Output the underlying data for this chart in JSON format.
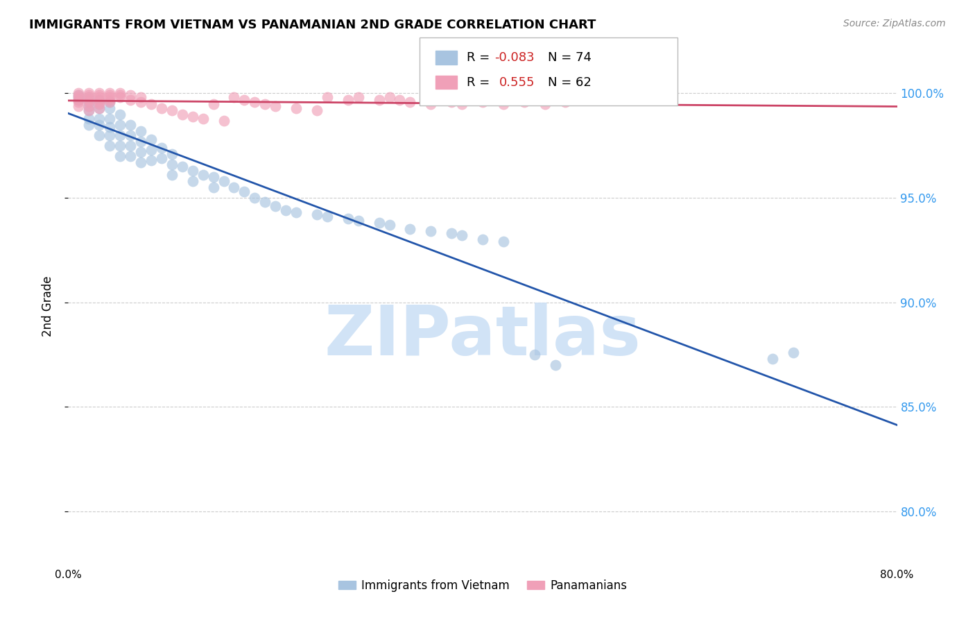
{
  "title": "IMMIGRANTS FROM VIETNAM VS PANAMANIAN 2ND GRADE CORRELATION CHART",
  "source": "Source: ZipAtlas.com",
  "ylabel": "2nd Grade",
  "ytick_labels": [
    "80.0%",
    "85.0%",
    "90.0%",
    "95.0%",
    "100.0%"
  ],
  "ytick_values": [
    0.8,
    0.85,
    0.9,
    0.95,
    1.0
  ],
  "xlim": [
    0.0,
    0.8
  ],
  "ylim": [
    0.778,
    1.018
  ],
  "legend_blue_label": "Immigrants from Vietnam",
  "legend_pink_label": "Panamanians",
  "blue_color": "#a8c4e0",
  "pink_color": "#f0a0b8",
  "blue_line_color": "#2255aa",
  "pink_line_color": "#cc4466",
  "blue_scatter_x": [
    0.01,
    0.01,
    0.01,
    0.02,
    0.02,
    0.02,
    0.02,
    0.02,
    0.02,
    0.03,
    0.03,
    0.03,
    0.03,
    0.03,
    0.03,
    0.04,
    0.04,
    0.04,
    0.04,
    0.04,
    0.04,
    0.05,
    0.05,
    0.05,
    0.05,
    0.05,
    0.06,
    0.06,
    0.06,
    0.06,
    0.07,
    0.07,
    0.07,
    0.07,
    0.08,
    0.08,
    0.08,
    0.09,
    0.09,
    0.1,
    0.1,
    0.1,
    0.11,
    0.12,
    0.12,
    0.13,
    0.14,
    0.14,
    0.15,
    0.16,
    0.17,
    0.18,
    0.19,
    0.2,
    0.21,
    0.22,
    0.24,
    0.25,
    0.27,
    0.28,
    0.3,
    0.31,
    0.33,
    0.35,
    0.37,
    0.38,
    0.4,
    0.42,
    0.45,
    0.47,
    0.68,
    0.7
  ],
  "blue_scatter_y": [
    0.999,
    0.998,
    0.997,
    0.998,
    0.996,
    0.994,
    0.992,
    0.988,
    0.985,
    0.997,
    0.995,
    0.993,
    0.988,
    0.985,
    0.98,
    0.996,
    0.993,
    0.988,
    0.984,
    0.98,
    0.975,
    0.99,
    0.985,
    0.98,
    0.975,
    0.97,
    0.985,
    0.98,
    0.975,
    0.97,
    0.982,
    0.977,
    0.972,
    0.967,
    0.978,
    0.973,
    0.968,
    0.974,
    0.969,
    0.971,
    0.966,
    0.961,
    0.965,
    0.963,
    0.958,
    0.961,
    0.96,
    0.955,
    0.958,
    0.955,
    0.953,
    0.95,
    0.948,
    0.946,
    0.944,
    0.943,
    0.942,
    0.941,
    0.94,
    0.939,
    0.938,
    0.937,
    0.935,
    0.934,
    0.933,
    0.932,
    0.93,
    0.929,
    0.875,
    0.87,
    0.873,
    0.876
  ],
  "pink_scatter_x": [
    0.01,
    0.01,
    0.01,
    0.01,
    0.01,
    0.01,
    0.02,
    0.02,
    0.02,
    0.02,
    0.02,
    0.02,
    0.02,
    0.03,
    0.03,
    0.03,
    0.03,
    0.03,
    0.03,
    0.03,
    0.04,
    0.04,
    0.04,
    0.04,
    0.04,
    0.05,
    0.05,
    0.05,
    0.06,
    0.06,
    0.07,
    0.07,
    0.08,
    0.09,
    0.1,
    0.11,
    0.12,
    0.13,
    0.14,
    0.15,
    0.16,
    0.17,
    0.18,
    0.19,
    0.2,
    0.22,
    0.24,
    0.25,
    0.27,
    0.28,
    0.3,
    0.31,
    0.32,
    0.33,
    0.35,
    0.37,
    0.38,
    0.4,
    0.42,
    0.44,
    0.46,
    0.48
  ],
  "pink_scatter_y": [
    1.0,
    0.999,
    0.998,
    0.997,
    0.996,
    0.994,
    1.0,
    0.999,
    0.998,
    0.997,
    0.996,
    0.994,
    0.992,
    1.0,
    0.999,
    0.998,
    0.997,
    0.996,
    0.995,
    0.993,
    1.0,
    0.999,
    0.998,
    0.997,
    0.996,
    1.0,
    0.999,
    0.998,
    0.999,
    0.997,
    0.998,
    0.996,
    0.995,
    0.993,
    0.992,
    0.99,
    0.989,
    0.988,
    0.995,
    0.987,
    0.998,
    0.997,
    0.996,
    0.995,
    0.994,
    0.993,
    0.992,
    0.998,
    0.997,
    0.998,
    0.997,
    0.998,
    0.997,
    0.996,
    0.995,
    0.996,
    0.995,
    0.996,
    0.995,
    0.996,
    0.995,
    0.996
  ]
}
